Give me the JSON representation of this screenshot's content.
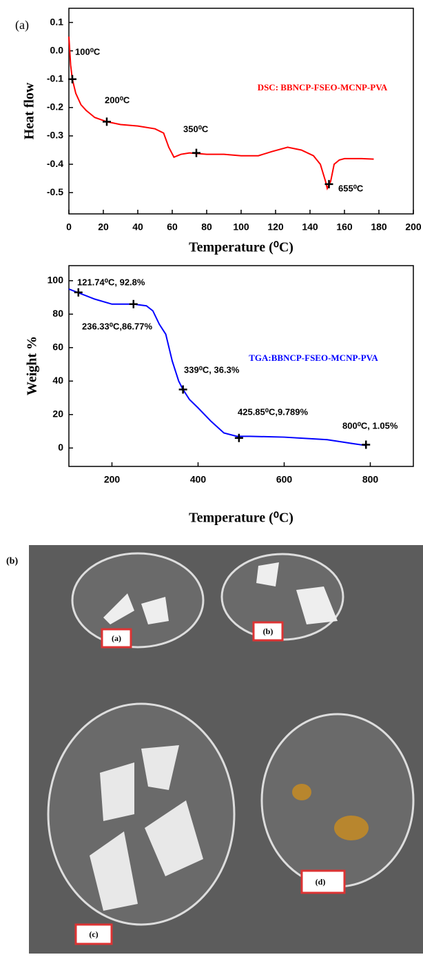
{
  "figure_labels": {
    "a": "(a)",
    "b": "(b)"
  },
  "chart_data": [
    {
      "type": "line",
      "x_label": "Temperature (⁰C)",
      "y_label": "Heat flow",
      "xlim": [
        0,
        200
      ],
      "ylim": [
        -0.575,
        0.15
      ],
      "xticks": [
        0,
        20,
        40,
        60,
        80,
        100,
        120,
        140,
        160,
        180,
        200
      ],
      "yticks": [
        0.1,
        {
          "value": 0,
          "label": "0.0"
        },
        -0.1,
        -0.2,
        -0.3,
        -0.4,
        -0.5
      ],
      "series": [
        {
          "name": "DSC: BBNCP-FSEO-MCNP-PVA",
          "color": "#ff0000",
          "x": [
            0,
            1,
            2,
            4,
            7,
            10,
            15,
            22,
            30,
            40,
            50,
            55,
            58,
            61,
            65,
            70,
            80,
            90,
            100,
            110,
            118,
            127,
            135,
            142,
            146,
            149,
            150,
            152,
            154,
            157,
            160,
            170,
            177
          ],
          "values": [
            0.05,
            -0.05,
            -0.1,
            -0.15,
            -0.19,
            -0.21,
            -0.235,
            -0.25,
            -0.26,
            -0.265,
            -0.275,
            -0.29,
            -0.34,
            -0.375,
            -0.365,
            -0.36,
            -0.365,
            -0.365,
            -0.37,
            -0.37,
            -0.355,
            -0.34,
            -0.35,
            -0.37,
            -0.4,
            -0.46,
            -0.485,
            -0.46,
            -0.4,
            -0.385,
            -0.38,
            -0.38,
            -0.382
          ]
        }
      ],
      "markers": {
        "x": [
          2,
          22,
          74,
          151
        ],
        "y": [
          -0.1,
          -0.25,
          -0.36,
          -0.47
        ]
      },
      "annotations": [
        "100⁰C",
        "200⁰C",
        "350⁰C",
        "655⁰C"
      ]
    },
    {
      "type": "line",
      "x_label": "Temperature (⁰C)",
      "y_label": "Weight %",
      "xlim": [
        100,
        900
      ],
      "ylim": [
        -11,
        109
      ],
      "xticks": [
        200,
        400,
        600,
        800
      ],
      "yticks": [
        0,
        20,
        40,
        60,
        80,
        100
      ],
      "series": [
        {
          "name": "TGA:BBNCP-FSEO-MCNP-PVA",
          "color": "#0000ff",
          "x": [
            100,
            120,
            160,
            200,
            250,
            280,
            295,
            310,
            325,
            340,
            355,
            365,
            380,
            400,
            430,
            460,
            490,
            520,
            600,
            700,
            750,
            790
          ],
          "values": [
            95,
            93,
            89,
            86,
            86,
            85,
            82,
            74,
            68,
            52,
            40,
            35,
            29,
            24,
            16,
            9,
            7,
            7,
            6.5,
            5,
            3,
            1.5
          ]
        }
      ],
      "markers": {
        "x": [
          122,
          250,
          365,
          495,
          790
        ],
        "y": [
          93,
          86,
          35,
          6,
          2
        ]
      },
      "annotations": [
        "121.74⁰C, 92.8%",
        "236.33⁰C,86.77%",
        "339⁰C, 36.3%",
        "425.85⁰C,9.789%",
        "800⁰C, 1.05%"
      ]
    }
  ],
  "photo": {
    "labels": [
      "(a)",
      "(b)",
      "(c)",
      "(d)"
    ]
  }
}
